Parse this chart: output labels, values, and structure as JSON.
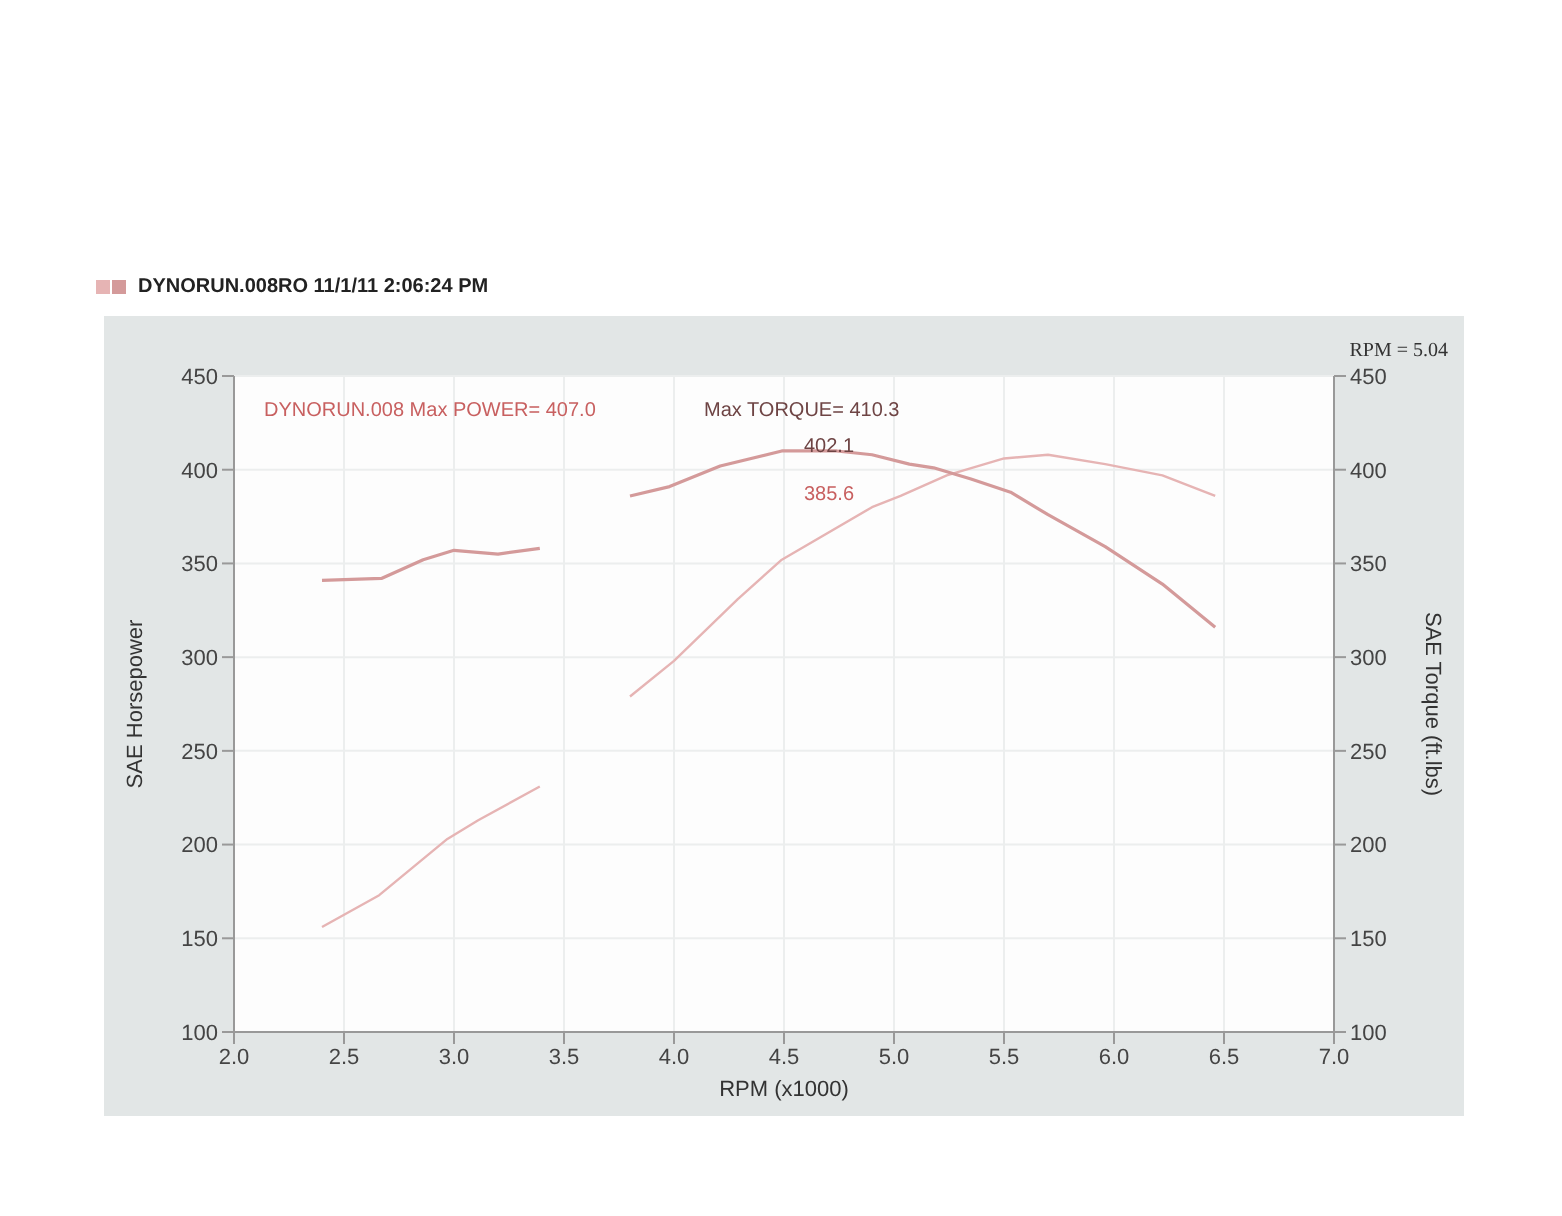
{
  "chart_data": {
    "type": "line",
    "xlabel": "RPM (x1000)",
    "ylabel": "SAE Horsepower",
    "y2label": "SAE Torque (ft.lbs)",
    "annotations": [
      "DYNORUN.008RO  11/1/11 2:06:24 PM",
      "RPM = 5.04",
      "DYNORUN.008  Max POWER= 407.0",
      "Max TORQUE= 410.3",
      "402.1",
      "385.6"
    ],
    "series": [
      {
        "color": "#e6b4b4",
        "x": [
          2.4,
          2.66,
          2.97,
          3.11,
          3.39,
          3.6,
          3.8,
          4.0,
          4.29,
          4.49,
          4.9,
          5.03,
          5.24,
          5.5,
          5.7,
          5.96,
          6.22,
          6.46
        ],
        "values": [
          156,
          173,
          203,
          213,
          231,
          null,
          279,
          298,
          331,
          352,
          380,
          386,
          397,
          406,
          408,
          403,
          397,
          386
        ]
      },
      {
        "color": "#d49a9a",
        "axis": "y2",
        "x": [
          2.4,
          2.67,
          2.86,
          3.0,
          3.2,
          3.39,
          3.6,
          3.8,
          3.98,
          4.21,
          4.49,
          4.64,
          4.74,
          4.9,
          5.07,
          5.18,
          5.35,
          5.53,
          5.7,
          5.96,
          6.22,
          6.46
        ],
        "values": [
          341,
          342,
          352,
          357,
          355,
          358,
          null,
          386,
          391,
          402,
          410,
          410,
          410,
          408,
          403,
          401,
          395,
          388,
          376,
          359,
          339,
          316
        ]
      }
    ],
    "xlim": [
      2,
      7
    ],
    "xticks": [
      {
        "value": 2,
        "label": "2.0"
      },
      {
        "value": 2.5,
        "label": "2.5"
      },
      {
        "value": 3,
        "label": "3.0"
      },
      {
        "value": 3.5,
        "label": "3.5"
      },
      {
        "value": 4,
        "label": "4.0"
      },
      {
        "value": 4.5,
        "label": "4.5"
      },
      {
        "value": 5,
        "label": "5.0"
      },
      {
        "value": 5.5,
        "label": "5.5"
      },
      {
        "value": 6,
        "label": "6.0"
      },
      {
        "value": 6.5,
        "label": "6.5"
      },
      {
        "value": 7,
        "label": "7.0"
      }
    ],
    "ylim": [
      100,
      450
    ],
    "yticks": [
      100,
      150,
      200,
      250,
      300,
      350,
      400,
      450
    ],
    "y2lim": [
      100,
      450
    ],
    "y2ticks": [
      100,
      150,
      200,
      250,
      300,
      350,
      400,
      450
    ],
    "grid": true,
    "legend": false,
    "marker": "none",
    "line_style": "solid"
  }
}
